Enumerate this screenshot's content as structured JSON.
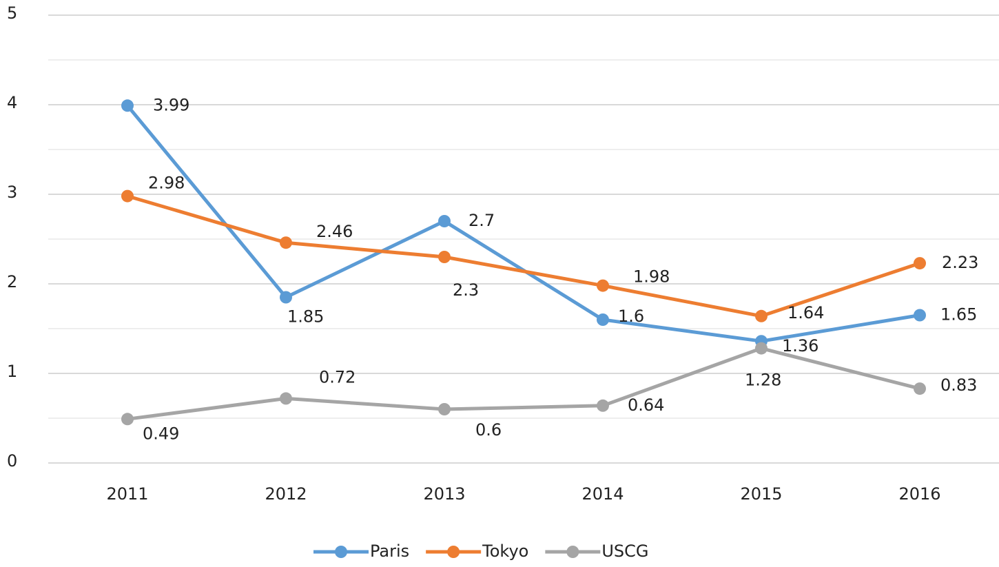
{
  "chart_data": {
    "type": "line",
    "categories": [
      "2011",
      "2012",
      "2013",
      "2014",
      "2015",
      "2016"
    ],
    "series": [
      {
        "name": "Paris",
        "color": "#5b9bd5",
        "values": [
          3.99,
          1.85,
          2.7,
          1.6,
          1.36,
          1.65
        ]
      },
      {
        "name": "Tokyo",
        "color": "#ed7d31",
        "values": [
          2.98,
          2.46,
          2.3,
          1.98,
          1.64,
          2.23
        ]
      },
      {
        "name": "USCG",
        "color": "#a5a5a5",
        "values": [
          0.49,
          0.72,
          0.6,
          0.64,
          1.28,
          0.83
        ]
      }
    ],
    "ylim": [
      0,
      5
    ],
    "yticks": [
      0,
      1,
      2,
      3,
      4,
      5
    ],
    "yminor": [
      0.5,
      1.5,
      2.5,
      3.5,
      4.5
    ],
    "grid": true,
    "legend": "bottom"
  }
}
